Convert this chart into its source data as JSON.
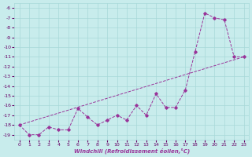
{
  "xlabel": "Windchill (Refroidissement éolien,°C)",
  "xlim": [
    -0.5,
    23.5
  ],
  "ylim": [
    -19.5,
    -5.5
  ],
  "yticks": [
    -6,
    -7,
    -8,
    -9,
    -10,
    -11,
    -12,
    -13,
    -14,
    -15,
    -16,
    -17,
    -18,
    -19
  ],
  "xticks": [
    0,
    1,
    2,
    3,
    4,
    5,
    6,
    7,
    8,
    9,
    10,
    11,
    12,
    13,
    14,
    15,
    16,
    17,
    18,
    19,
    20,
    21,
    22,
    23
  ],
  "bg_color": "#c8ecec",
  "grid_color": "#a8d8d8",
  "line_color": "#993399",
  "line1_x": [
    0,
    1,
    2,
    3,
    4,
    5,
    6,
    7,
    8,
    9,
    10,
    11,
    12,
    13,
    14,
    15,
    16,
    17,
    18,
    19,
    20,
    21,
    22,
    23
  ],
  "line1_y": [
    -18,
    -19,
    -19,
    -18.2,
    -18.5,
    -18.5,
    -16.3,
    -17.2,
    -18.0,
    -17.5,
    -17.0,
    -17.5,
    -16.0,
    -17.0,
    -14.8,
    -16.2,
    -16.2,
    -14.4,
    -10.5,
    -6.5,
    -7.0,
    -7.2,
    -11.0,
    -11.0
  ],
  "line2_x": [
    0,
    23
  ],
  "line2_y": [
    -18,
    -11
  ]
}
